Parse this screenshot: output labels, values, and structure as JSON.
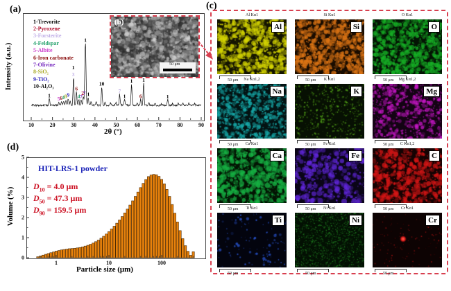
{
  "panels": {
    "a": {
      "tag": "(a)",
      "ylabel": "Intensity (a.u.)",
      "xlabel": "2θ (°)",
      "xticks": [
        10,
        20,
        30,
        40,
        50,
        60,
        70,
        80,
        90
      ],
      "legend": [
        {
          "text": "1-Trevorite",
          "color": "#000000"
        },
        {
          "text": "2-Pyroxene",
          "color": "#b01030"
        },
        {
          "text": "3-Forsterite",
          "color": "#c0aee6"
        },
        {
          "text": "4-Feldspar",
          "color": "#1f9e68"
        },
        {
          "text": "5-Albite",
          "color": "#cc3fcc"
        },
        {
          "text": "6-Iron carbonate",
          "color": "#8a0c0c"
        },
        {
          "text": "7-Olivine",
          "color": "#7a2fc0"
        },
        {
          "text": "8-SiO₂",
          "color": "#a8a826"
        },
        {
          "text": "9-TiO₂",
          "color": "#2b22bb"
        },
        {
          "text": "10-Al₂O₃",
          "color": "#111111"
        }
      ]
    },
    "b": {
      "tag": "(b)",
      "scale_label": "50 μm"
    },
    "c": {
      "tag": "(c)",
      "scale_label": "50 μm",
      "tiles": [
        {
          "symbol": "Al",
          "kline": "Al Kα1",
          "bg": "#141400",
          "color": "#d6d600",
          "blobs": 520,
          "rmin": 1,
          "rmax": 3.6,
          "fine": 320
        },
        {
          "symbol": "Si",
          "kline": "Si Kα1",
          "bg": "#190c00",
          "color": "#df7615",
          "blobs": 520,
          "rmin": 1,
          "rmax": 3.6,
          "fine": 320
        },
        {
          "symbol": "O",
          "kline": "O Kα1",
          "bg": "#041404",
          "color": "#17b226",
          "blobs": 520,
          "rmin": 1,
          "rmax": 3.6,
          "fine": 320
        },
        {
          "symbol": "Na",
          "kline": "Na Kα1,2",
          "bg": "#031313",
          "color": "#17aeae",
          "blobs": 430,
          "rmin": 0.8,
          "rmax": 3.0,
          "fine": 300
        },
        {
          "symbol": "K",
          "kline": "K Kα1",
          "bg": "#071003",
          "color": "#4e9b17",
          "blobs": 240,
          "rmin": 0.5,
          "rmax": 1.6,
          "fine": 200
        },
        {
          "symbol": "Mg",
          "kline": "Mg Kα1,2",
          "bg": "#130313",
          "color": "#c617c6",
          "blobs": 330,
          "rmin": 0.8,
          "rmax": 3.2,
          "fine": 220
        },
        {
          "symbol": "Ca",
          "kline": "Ca Kα1",
          "bg": "#031403",
          "color": "#17b244",
          "blobs": 480,
          "rmin": 1,
          "rmax": 3.8,
          "fine": 260
        },
        {
          "symbol": "Fe",
          "kline": "Fe Kα1",
          "bg": "#0a0517",
          "color": "#6227de",
          "blobs": 250,
          "rmin": 1.2,
          "rmax": 4.2,
          "fine": 160
        },
        {
          "symbol": "C",
          "kline": "C Kα1,2",
          "bg": "#140303",
          "color": "#d61616",
          "blobs": 470,
          "rmin": 1,
          "rmax": 3.6,
          "fine": 260
        },
        {
          "symbol": "Ti",
          "kline": "Ti Kα1",
          "bg": "#03040e",
          "color": "#2a57d6",
          "blobs": 55,
          "rmin": 0.7,
          "rmax": 2.4,
          "fine": 60
        },
        {
          "symbol": "Ni",
          "kline": "Ni Kα1",
          "bg": "#031003",
          "color": "#2a9e2a",
          "blobs": 1300,
          "rmin": 0.35,
          "rmax": 0.9,
          "fine": 0
        },
        {
          "symbol": "Cr",
          "kline": "Cr Kα1",
          "bg": "#0d0303",
          "color": "#c61616",
          "blobs": 110,
          "rmin": 0.4,
          "rmax": 1.0,
          "fine": 0,
          "spot": {
            "fx": 0.44,
            "fy": 0.48,
            "r": 5
          }
        }
      ]
    },
    "d": {
      "tag": "(d)",
      "title": "HIT-LRS-1 powder",
      "title_color": "#1c24b8",
      "d_values": [
        {
          "sym": "D",
          "sub": "10",
          "rest": " = 4.0 μm"
        },
        {
          "sym": "D",
          "sub": "50",
          "rest": " = 47.3 μm"
        },
        {
          "sym": "D",
          "sub": "90",
          "rest": " = 159.5 μm"
        }
      ],
      "d_color": "#cc1022",
      "ylabel": "Volume (%)",
      "xlabel": "Particle size (μm)",
      "yticks": [
        0,
        1,
        2,
        3,
        4,
        5
      ],
      "xticks": [
        1,
        10,
        100
      ],
      "bar_color": "#e8820c",
      "bar_edge": "#4a2800"
    }
  },
  "chart_data": [
    {
      "type": "line",
      "name": "XRD pattern",
      "title": "",
      "xlabel": "2θ (°)",
      "ylabel": "Intensity (a.u.)",
      "xlim": [
        10,
        90
      ],
      "peaks": [
        [
          18.5,
          0.12
        ],
        [
          23.0,
          0.055
        ],
        [
          24.2,
          0.065
        ],
        [
          25.2,
          0.075
        ],
        [
          26.3,
          0.09
        ],
        [
          27.4,
          0.11
        ],
        [
          28.3,
          0.07
        ],
        [
          29.9,
          0.46
        ],
        [
          31.3,
          0.22
        ],
        [
          32.4,
          0.1
        ],
        [
          33.5,
          0.09
        ],
        [
          34.5,
          0.13
        ],
        [
          35.5,
          1.0
        ],
        [
          36.8,
          0.13
        ],
        [
          38.2,
          0.06
        ],
        [
          40.6,
          0.05
        ],
        [
          43.2,
          0.3
        ],
        [
          44.8,
          0.045
        ],
        [
          47.3,
          0.04
        ],
        [
          49.8,
          0.05
        ],
        [
          51.6,
          0.18
        ],
        [
          53.9,
          0.1
        ],
        [
          57.2,
          0.34
        ],
        [
          59.9,
          0.04
        ],
        [
          61.5,
          0.1
        ],
        [
          62.9,
          0.36
        ],
        [
          65.3,
          0.04
        ],
        [
          68.2,
          0.03
        ],
        [
          71.2,
          0.03
        ],
        [
          74.2,
          0.09
        ],
        [
          76.6,
          0.03
        ],
        [
          79.1,
          0.03
        ],
        [
          81.4,
          0.03
        ],
        [
          84.1,
          0.035
        ],
        [
          86.9,
          0.03
        ]
      ],
      "peak_labels": [
        [
          18.5,
          0.14,
          "1",
          "#000000"
        ],
        [
          22.9,
          0.09,
          "5",
          "#cc3fcc"
        ],
        [
          24.1,
          0.1,
          "6",
          "#8a0c0c"
        ],
        [
          25.1,
          0.11,
          "4",
          "#1f9e68"
        ],
        [
          26.2,
          0.13,
          "8",
          "#a8a826"
        ],
        [
          27.4,
          0.15,
          "9",
          "#2b22bb"
        ],
        [
          29.8,
          0.48,
          "3",
          "#c0aee6"
        ],
        [
          29.8,
          0.59,
          "1",
          "#000000"
        ],
        [
          31.3,
          0.25,
          "6",
          "#8a0c0c"
        ],
        [
          32.4,
          0.13,
          "4",
          "#1f9e68"
        ],
        [
          33.5,
          0.12,
          "7",
          "#7a2fc0"
        ],
        [
          34.2,
          0.18,
          "2",
          "#b01030"
        ],
        [
          35.0,
          0.18,
          "7",
          "#7a2fc0"
        ],
        [
          35.5,
          1.03,
          "1",
          "#000000"
        ],
        [
          36.9,
          0.16,
          "1",
          "#000000"
        ],
        [
          43.2,
          0.33,
          "10",
          "#000000"
        ],
        [
          51.6,
          0.21,
          "7",
          "#c0aee6"
        ],
        [
          53.9,
          0.13,
          "1",
          "#000000"
        ],
        [
          57.2,
          0.37,
          "1",
          "#000000"
        ],
        [
          61.5,
          0.13,
          "6",
          "#8a0c0c"
        ],
        [
          62.9,
          0.39,
          "1",
          "#000000"
        ],
        [
          74.2,
          0.12,
          "1",
          "#000000"
        ]
      ]
    },
    {
      "type": "bar",
      "name": "Particle size distribution",
      "xlabel": "Particle size (μm)",
      "ylabel": "Volume (%)",
      "xscale": "log",
      "xlim": [
        0.4,
        450
      ],
      "ylim": [
        0,
        5
      ],
      "bin_start_um": 0.45,
      "bins_per_decade": 20,
      "values": [
        0.05,
        0.09,
        0.13,
        0.17,
        0.21,
        0.25,
        0.29,
        0.33,
        0.36,
        0.39,
        0.41,
        0.43,
        0.45,
        0.46,
        0.47,
        0.49,
        0.51,
        0.54,
        0.58,
        0.62,
        0.67,
        0.73,
        0.8,
        0.88,
        0.97,
        1.07,
        1.18,
        1.3,
        1.43,
        1.57,
        1.72,
        1.88,
        2.05,
        2.23,
        2.42,
        2.62,
        2.83,
        3.05,
        3.27,
        3.49,
        3.7,
        3.89,
        4.04,
        4.12,
        4.15,
        4.13,
        4.05,
        3.9,
        3.68,
        3.4,
        3.05,
        2.65,
        2.22,
        1.78,
        1.35,
        0.95,
        0.6,
        0.32,
        0.12,
        0.3
      ]
    }
  ]
}
